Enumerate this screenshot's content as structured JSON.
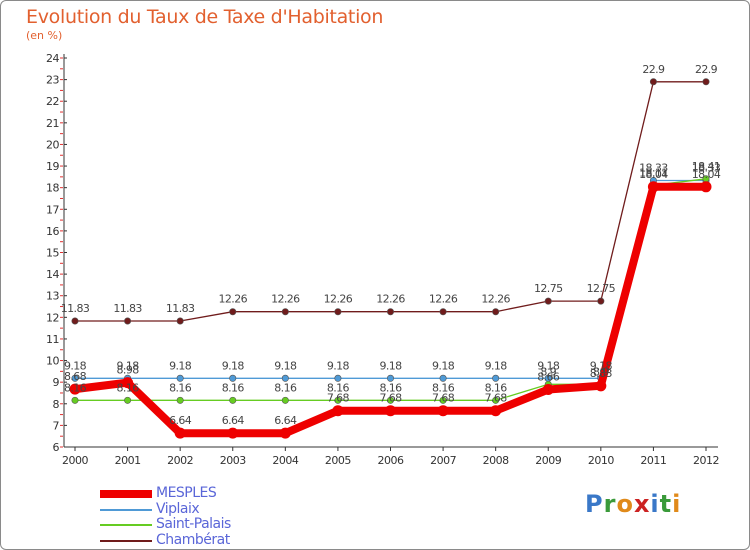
{
  "title": "Evolution du Taux de Taxe d'Habitation",
  "subtitle": "(en %)",
  "logo": "Proxiti",
  "chart_data": {
    "type": "line",
    "title": "Evolution du Taux de Taxe d'Habitation",
    "ylabel": "(en %)",
    "xlabel": "",
    "x": [
      "2000",
      "2001",
      "2002",
      "2003",
      "2004",
      "2005",
      "2006",
      "2007",
      "2008",
      "2009",
      "2010",
      "2011",
      "2012"
    ],
    "ylim": [
      6,
      24
    ],
    "yticks": [
      "6",
      "7",
      "8",
      "9",
      "10",
      "11",
      "12",
      "13",
      "14",
      "15",
      "16",
      "17",
      "18",
      "19",
      "20",
      "21",
      "22",
      "23",
      "24"
    ],
    "grid": false,
    "legend_position": "bottom-left",
    "series": [
      {
        "name": "MESPLES",
        "color": "#ee0000",
        "values": [
          8.68,
          8.98,
          6.64,
          6.64,
          6.64,
          7.68,
          7.68,
          7.68,
          7.68,
          8.66,
          8.83,
          18.04,
          18.04
        ],
        "labels": [
          "8.68",
          "8.98",
          "6.64",
          "6.64",
          "6.64",
          "7.68",
          "7.68",
          "7.68",
          "7.68",
          "8.66",
          "8.83",
          "18.04",
          "18.04"
        ]
      },
      {
        "name": "Viplaix",
        "color": "#4f9ad6",
        "values": [
          9.18,
          9.18,
          9.18,
          9.18,
          9.18,
          9.18,
          9.18,
          9.18,
          9.18,
          9.18,
          9.18,
          18.33,
          18.33
        ],
        "labels": [
          "9.18",
          "9.18",
          "9.18",
          "9.18",
          "9.18",
          "9.18",
          "9.18",
          "9.18",
          "9.18",
          "9.18",
          "9.18",
          "18.33",
          "18.33"
        ]
      },
      {
        "name": "Saint-Palais",
        "color": "#66cc22",
        "values": [
          8.16,
          8.16,
          8.16,
          8.16,
          8.16,
          8.16,
          8.16,
          8.16,
          8.16,
          8.9,
          8.9,
          18.11,
          18.41
        ],
        "labels": [
          "8.16",
          "8.16",
          "8.16",
          "8.16",
          "8.16",
          "8.16",
          "8.16",
          "8.16",
          "8.16",
          "8.9",
          "8.9",
          "18.11",
          "18.41"
        ]
      },
      {
        "name": "Chambérat",
        "color": "#701c1c",
        "values": [
          11.83,
          11.83,
          11.83,
          12.26,
          12.26,
          12.26,
          12.26,
          12.26,
          12.26,
          12.75,
          12.75,
          22.9,
          22.9
        ],
        "labels": [
          "11.83",
          "11.83",
          "11.83",
          "12.26",
          "12.26",
          "12.26",
          "12.26",
          "12.26",
          "12.26",
          "12.75",
          "12.75",
          "22.9",
          "22.9"
        ]
      }
    ]
  }
}
